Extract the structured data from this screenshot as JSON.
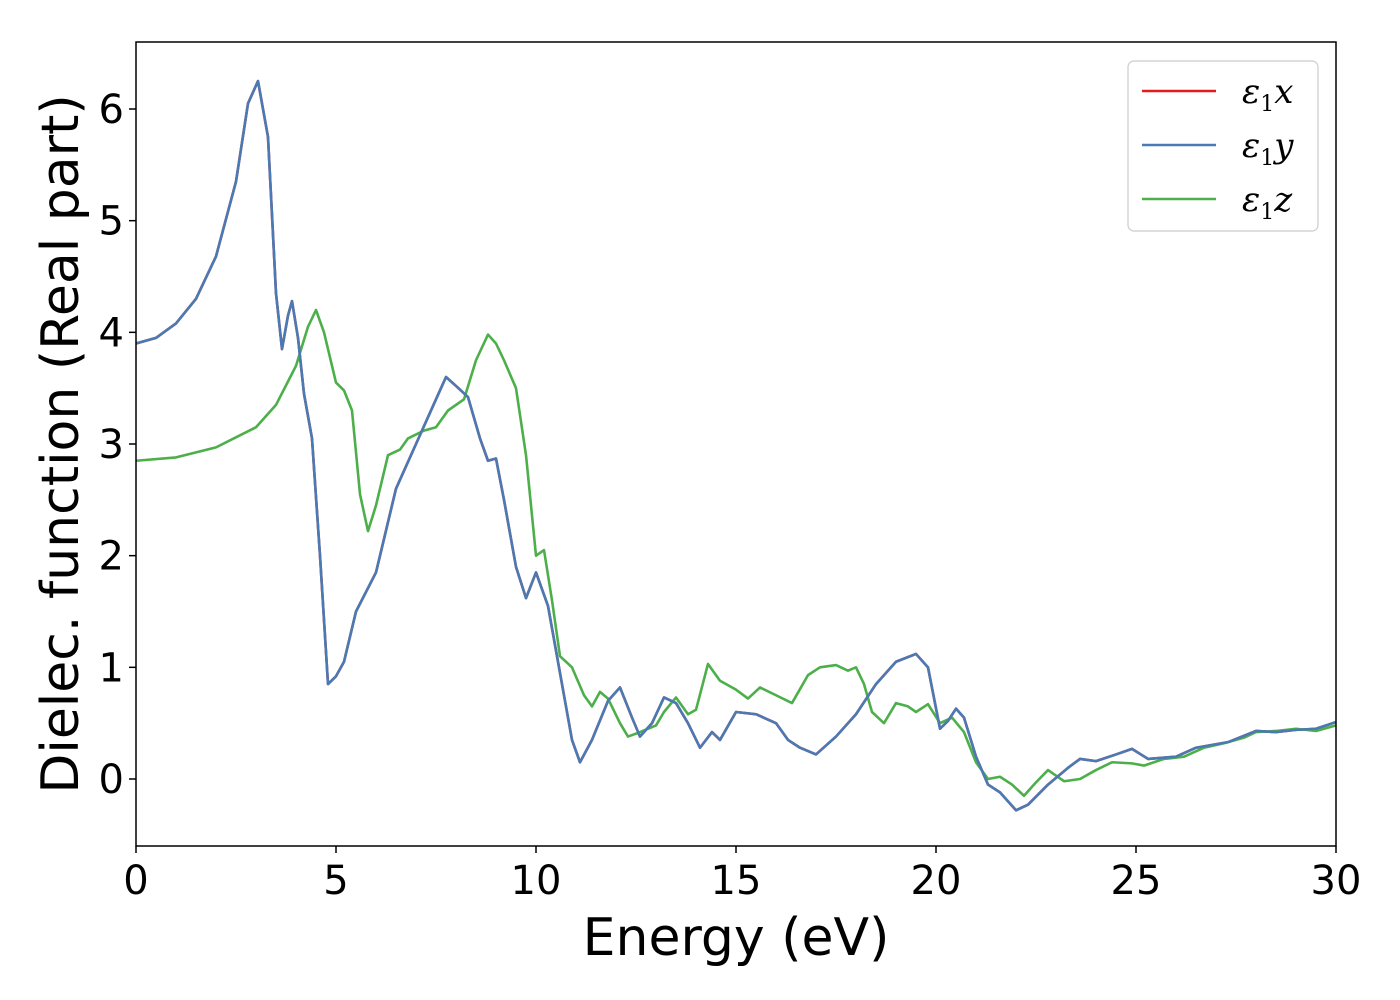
{
  "chart_data": {
    "type": "line",
    "title": "",
    "xlabel": "Energy (eV)",
    "ylabel": "Dielec. function (Real part)",
    "xlim": [
      0,
      30
    ],
    "ylim": [
      -0.6,
      6.6
    ],
    "xticks": [
      0,
      5,
      10,
      15,
      20,
      25,
      30
    ],
    "yticks": [
      0,
      1,
      2,
      3,
      4,
      5,
      6
    ],
    "grid": false,
    "legend_position": "top-right",
    "series": [
      {
        "name": "ε1x",
        "legend_base": "ε",
        "legend_sub": "1",
        "legend_suffix": "x",
        "color": "#e41a1c",
        "points": [
          [
            0,
            3.9
          ],
          [
            0.5,
            3.95
          ],
          [
            1,
            4.08
          ],
          [
            1.5,
            4.3
          ],
          [
            2,
            4.68
          ],
          [
            2.5,
            5.35
          ],
          [
            2.8,
            6.05
          ],
          [
            3.05,
            6.25
          ],
          [
            3.3,
            5.75
          ],
          [
            3.5,
            4.35
          ],
          [
            3.65,
            3.85
          ],
          [
            3.8,
            4.15
          ],
          [
            3.9,
            4.28
          ],
          [
            4.05,
            3.95
          ],
          [
            4.2,
            3.45
          ],
          [
            4.4,
            3.05
          ],
          [
            4.6,
            2.0
          ],
          [
            4.8,
            0.85
          ],
          [
            5.0,
            0.92
          ],
          [
            5.2,
            1.05
          ],
          [
            5.5,
            1.5
          ],
          [
            6.0,
            1.85
          ],
          [
            6.5,
            2.6
          ],
          [
            7.0,
            3.0
          ],
          [
            7.5,
            3.4
          ],
          [
            7.75,
            3.6
          ],
          [
            8.0,
            3.52
          ],
          [
            8.3,
            3.42
          ],
          [
            8.6,
            3.05
          ],
          [
            8.8,
            2.85
          ],
          [
            9.0,
            2.87
          ],
          [
            9.2,
            2.5
          ],
          [
            9.5,
            1.9
          ],
          [
            9.75,
            1.62
          ],
          [
            10.0,
            1.85
          ],
          [
            10.3,
            1.55
          ],
          [
            10.6,
            0.95
          ],
          [
            10.9,
            0.35
          ],
          [
            11.1,
            0.15
          ],
          [
            11.4,
            0.35
          ],
          [
            11.8,
            0.7
          ],
          [
            12.1,
            0.82
          ],
          [
            12.4,
            0.55
          ],
          [
            12.6,
            0.38
          ],
          [
            12.9,
            0.5
          ],
          [
            13.2,
            0.73
          ],
          [
            13.5,
            0.68
          ],
          [
            13.8,
            0.5
          ],
          [
            14.1,
            0.28
          ],
          [
            14.4,
            0.42
          ],
          [
            14.6,
            0.35
          ],
          [
            15.0,
            0.6
          ],
          [
            15.5,
            0.58
          ],
          [
            16.0,
            0.5
          ],
          [
            16.3,
            0.35
          ],
          [
            16.6,
            0.28
          ],
          [
            17.0,
            0.22
          ],
          [
            17.5,
            0.38
          ],
          [
            18.0,
            0.58
          ],
          [
            18.5,
            0.85
          ],
          [
            19.0,
            1.05
          ],
          [
            19.5,
            1.12
          ],
          [
            19.8,
            1.0
          ],
          [
            20.1,
            0.45
          ],
          [
            20.3,
            0.52
          ],
          [
            20.5,
            0.63
          ],
          [
            20.7,
            0.55
          ],
          [
            21.0,
            0.2
          ],
          [
            21.3,
            -0.05
          ],
          [
            21.6,
            -0.12
          ],
          [
            22.0,
            -0.28
          ],
          [
            22.3,
            -0.23
          ],
          [
            22.8,
            -0.05
          ],
          [
            23.3,
            0.1
          ],
          [
            23.6,
            0.18
          ],
          [
            24.0,
            0.16
          ],
          [
            24.5,
            0.22
          ],
          [
            24.9,
            0.27
          ],
          [
            25.3,
            0.18
          ],
          [
            26.0,
            0.2
          ],
          [
            26.5,
            0.28
          ],
          [
            27.3,
            0.33
          ],
          [
            28.0,
            0.43
          ],
          [
            28.5,
            0.42
          ],
          [
            29.0,
            0.44
          ],
          [
            29.5,
            0.45
          ],
          [
            30.0,
            0.51
          ]
        ]
      },
      {
        "name": "ε1y",
        "legend_base": "ε",
        "legend_sub": "1",
        "legend_suffix": "y",
        "color": "#4a7ab4",
        "points": [
          [
            0,
            3.9
          ],
          [
            0.5,
            3.95
          ],
          [
            1,
            4.08
          ],
          [
            1.5,
            4.3
          ],
          [
            2,
            4.68
          ],
          [
            2.5,
            5.35
          ],
          [
            2.8,
            6.05
          ],
          [
            3.05,
            6.25
          ],
          [
            3.3,
            5.75
          ],
          [
            3.5,
            4.35
          ],
          [
            3.65,
            3.85
          ],
          [
            3.8,
            4.15
          ],
          [
            3.9,
            4.28
          ],
          [
            4.05,
            3.95
          ],
          [
            4.2,
            3.45
          ],
          [
            4.4,
            3.05
          ],
          [
            4.6,
            2.0
          ],
          [
            4.8,
            0.85
          ],
          [
            5.0,
            0.92
          ],
          [
            5.2,
            1.05
          ],
          [
            5.5,
            1.5
          ],
          [
            6.0,
            1.85
          ],
          [
            6.5,
            2.6
          ],
          [
            7.0,
            3.0
          ],
          [
            7.5,
            3.4
          ],
          [
            7.75,
            3.6
          ],
          [
            8.0,
            3.52
          ],
          [
            8.3,
            3.42
          ],
          [
            8.6,
            3.05
          ],
          [
            8.8,
            2.85
          ],
          [
            9.0,
            2.87
          ],
          [
            9.2,
            2.5
          ],
          [
            9.5,
            1.9
          ],
          [
            9.75,
            1.62
          ],
          [
            10.0,
            1.85
          ],
          [
            10.3,
            1.55
          ],
          [
            10.6,
            0.95
          ],
          [
            10.9,
            0.35
          ],
          [
            11.1,
            0.15
          ],
          [
            11.4,
            0.35
          ],
          [
            11.8,
            0.7
          ],
          [
            12.1,
            0.82
          ],
          [
            12.4,
            0.55
          ],
          [
            12.6,
            0.38
          ],
          [
            12.9,
            0.5
          ],
          [
            13.2,
            0.73
          ],
          [
            13.5,
            0.68
          ],
          [
            13.8,
            0.5
          ],
          [
            14.1,
            0.28
          ],
          [
            14.4,
            0.42
          ],
          [
            14.6,
            0.35
          ],
          [
            15.0,
            0.6
          ],
          [
            15.5,
            0.58
          ],
          [
            16.0,
            0.5
          ],
          [
            16.3,
            0.35
          ],
          [
            16.6,
            0.28
          ],
          [
            17.0,
            0.22
          ],
          [
            17.5,
            0.38
          ],
          [
            18.0,
            0.58
          ],
          [
            18.5,
            0.85
          ],
          [
            19.0,
            1.05
          ],
          [
            19.5,
            1.12
          ],
          [
            19.8,
            1.0
          ],
          [
            20.1,
            0.45
          ],
          [
            20.3,
            0.52
          ],
          [
            20.5,
            0.63
          ],
          [
            20.7,
            0.55
          ],
          [
            21.0,
            0.2
          ],
          [
            21.3,
            -0.05
          ],
          [
            21.6,
            -0.12
          ],
          [
            22.0,
            -0.28
          ],
          [
            22.3,
            -0.23
          ],
          [
            22.8,
            -0.05
          ],
          [
            23.3,
            0.1
          ],
          [
            23.6,
            0.18
          ],
          [
            24.0,
            0.16
          ],
          [
            24.5,
            0.22
          ],
          [
            24.9,
            0.27
          ],
          [
            25.3,
            0.18
          ],
          [
            26.0,
            0.2
          ],
          [
            26.5,
            0.28
          ],
          [
            27.3,
            0.33
          ],
          [
            28.0,
            0.43
          ],
          [
            28.5,
            0.42
          ],
          [
            29.0,
            0.44
          ],
          [
            29.5,
            0.45
          ],
          [
            30.0,
            0.51
          ]
        ]
      },
      {
        "name": "ε1z",
        "legend_base": "ε",
        "legend_sub": "1",
        "legend_suffix": "z",
        "color": "#4daf4a",
        "points": [
          [
            0,
            2.85
          ],
          [
            1.0,
            2.88
          ],
          [
            2.0,
            2.97
          ],
          [
            3.0,
            3.15
          ],
          [
            3.5,
            3.35
          ],
          [
            4.0,
            3.7
          ],
          [
            4.3,
            4.05
          ],
          [
            4.5,
            4.2
          ],
          [
            4.7,
            4.0
          ],
          [
            5.0,
            3.55
          ],
          [
            5.2,
            3.48
          ],
          [
            5.4,
            3.3
          ],
          [
            5.6,
            2.55
          ],
          [
            5.8,
            2.22
          ],
          [
            6.0,
            2.45
          ],
          [
            6.3,
            2.9
          ],
          [
            6.6,
            2.95
          ],
          [
            6.8,
            3.05
          ],
          [
            7.2,
            3.12
          ],
          [
            7.5,
            3.15
          ],
          [
            7.8,
            3.3
          ],
          [
            8.2,
            3.4
          ],
          [
            8.5,
            3.75
          ],
          [
            8.8,
            3.98
          ],
          [
            9.0,
            3.9
          ],
          [
            9.2,
            3.75
          ],
          [
            9.5,
            3.5
          ],
          [
            9.75,
            2.9
          ],
          [
            10.0,
            2.0
          ],
          [
            10.2,
            2.05
          ],
          [
            10.4,
            1.6
          ],
          [
            10.6,
            1.1
          ],
          [
            10.9,
            1.0
          ],
          [
            11.2,
            0.75
          ],
          [
            11.4,
            0.65
          ],
          [
            11.6,
            0.78
          ],
          [
            11.8,
            0.72
          ],
          [
            12.1,
            0.5
          ],
          [
            12.3,
            0.38
          ],
          [
            12.6,
            0.42
          ],
          [
            13.0,
            0.48
          ],
          [
            13.2,
            0.6
          ],
          [
            13.5,
            0.73
          ],
          [
            13.8,
            0.58
          ],
          [
            14.0,
            0.62
          ],
          [
            14.3,
            1.03
          ],
          [
            14.6,
            0.88
          ],
          [
            15.0,
            0.8
          ],
          [
            15.3,
            0.72
          ],
          [
            15.6,
            0.82
          ],
          [
            16.0,
            0.75
          ],
          [
            16.4,
            0.68
          ],
          [
            16.8,
            0.93
          ],
          [
            17.1,
            1.0
          ],
          [
            17.5,
            1.02
          ],
          [
            17.8,
            0.97
          ],
          [
            18.0,
            1.0
          ],
          [
            18.2,
            0.85
          ],
          [
            18.4,
            0.6
          ],
          [
            18.7,
            0.5
          ],
          [
            19.0,
            0.68
          ],
          [
            19.3,
            0.65
          ],
          [
            19.5,
            0.6
          ],
          [
            19.8,
            0.67
          ],
          [
            20.1,
            0.5
          ],
          [
            20.4,
            0.55
          ],
          [
            20.7,
            0.42
          ],
          [
            21.0,
            0.15
          ],
          [
            21.3,
            0.0
          ],
          [
            21.6,
            0.02
          ],
          [
            21.9,
            -0.05
          ],
          [
            22.2,
            -0.15
          ],
          [
            22.5,
            -0.03
          ],
          [
            22.8,
            0.08
          ],
          [
            23.2,
            -0.02
          ],
          [
            23.6,
            0.0
          ],
          [
            24.0,
            0.08
          ],
          [
            24.4,
            0.15
          ],
          [
            24.9,
            0.14
          ],
          [
            25.2,
            0.12
          ],
          [
            25.7,
            0.18
          ],
          [
            26.2,
            0.2
          ],
          [
            26.7,
            0.28
          ],
          [
            27.2,
            0.32
          ],
          [
            27.7,
            0.37
          ],
          [
            28.0,
            0.42
          ],
          [
            28.5,
            0.43
          ],
          [
            29.0,
            0.45
          ],
          [
            29.5,
            0.43
          ],
          [
            30.0,
            0.48
          ]
        ]
      }
    ]
  }
}
